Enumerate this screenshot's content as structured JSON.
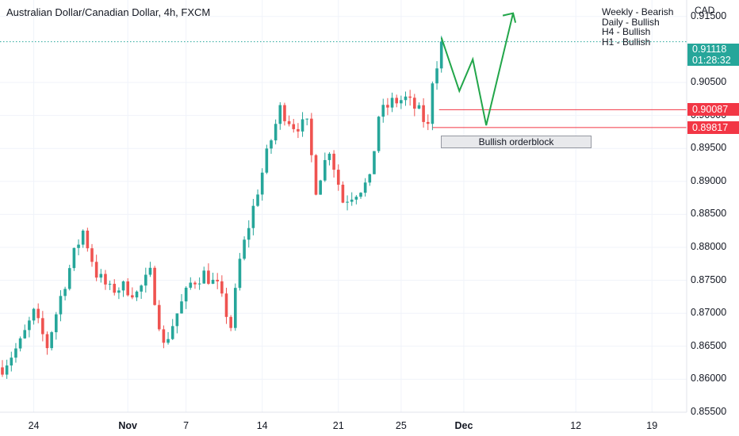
{
  "header": {
    "title": "Australian Dollar/Canadian Dollar, 4h, FXCM",
    "currency": "CAD"
  },
  "bias_notes": [
    "Weekly - Bearish",
    "Daily - Bullish",
    "H4 - Bullish",
    "H1 - Bullish"
  ],
  "badges": {
    "current_price": "0.91118",
    "countdown": "01:28:32",
    "upper_level": "0.90087",
    "lower_level": "0.89817"
  },
  "orderblock_label": "Bullish orderblock",
  "colors": {
    "up": "#26a69a",
    "down": "#ef5350",
    "projection": "#22a64a",
    "level_line": "#f23645",
    "current_line": "#26a69a",
    "grid": "#f0f3fa"
  },
  "chart_data": {
    "type": "candlestick",
    "timeframe": "4h",
    "ylim": [
      0.855,
      0.9175
    ],
    "yticks": [
      "0.91500",
      "0.90500",
      "0.90000",
      "0.89500",
      "0.89000",
      "0.88500",
      "0.88000",
      "0.87500",
      "0.87000",
      "0.86500",
      "0.86000",
      "0.85500"
    ],
    "ytick_values": [
      0.915,
      0.905,
      0.9,
      0.895,
      0.89,
      0.885,
      0.88,
      0.875,
      0.87,
      0.865,
      0.86,
      0.855
    ],
    "xticks": [
      {
        "label": "24",
        "bar": 7,
        "bold": false
      },
      {
        "label": "Nov",
        "bar": 28,
        "bold": true
      },
      {
        "label": "7",
        "bar": 41,
        "bold": false
      },
      {
        "label": "14",
        "bar": 58,
        "bold": false
      },
      {
        "label": "21",
        "bar": 75,
        "bold": false
      },
      {
        "label": "25",
        "bar": 89,
        "bold": false
      },
      {
        "label": "Dec",
        "bar": 103,
        "bold": true
      },
      {
        "label": "12",
        "bar": 128,
        "bold": false
      },
      {
        "label": "19",
        "bar": 145,
        "bold": false
      }
    ],
    "total_bars": 150,
    "anchors": [
      [
        0,
        0.8618
      ],
      [
        4,
        0.8655
      ],
      [
        7,
        0.87
      ],
      [
        10,
        0.865
      ],
      [
        13,
        0.8725
      ],
      [
        16,
        0.879
      ],
      [
        18,
        0.8825
      ],
      [
        21,
        0.876
      ],
      [
        24,
        0.8735
      ],
      [
        27,
        0.874
      ],
      [
        30,
        0.873
      ],
      [
        33,
        0.876
      ],
      [
        36,
        0.865
      ],
      [
        39,
        0.87
      ],
      [
        42,
        0.8745
      ],
      [
        45,
        0.876
      ],
      [
        48,
        0.874
      ],
      [
        51,
        0.868
      ],
      [
        53,
        0.878
      ],
      [
        56,
        0.886
      ],
      [
        59,
        0.894
      ],
      [
        62,
        0.901
      ],
      [
        65,
        0.8985
      ],
      [
        68,
        0.8985
      ],
      [
        70,
        0.889
      ],
      [
        73,
        0.895
      ],
      [
        76,
        0.887
      ],
      [
        79,
        0.8885
      ],
      [
        82,
        0.89
      ],
      [
        84,
        0.9
      ],
      [
        87,
        0.902
      ],
      [
        90,
        0.9025
      ],
      [
        93,
        0.9005
      ],
      [
        95,
        0.8982
      ],
      [
        96,
        0.9055
      ],
      [
        97,
        0.908
      ],
      [
        98,
        0.9112
      ]
    ],
    "projection": [
      [
        98,
        0.9118
      ],
      [
        102,
        0.9037
      ],
      [
        105,
        0.9085
      ],
      [
        108,
        0.8985
      ],
      [
        114,
        0.9155
      ]
    ],
    "levels": {
      "current": 0.91118,
      "upper": 0.90087,
      "lower": 0.89817,
      "orderblock_bars": [
        96,
        129
      ]
    }
  }
}
